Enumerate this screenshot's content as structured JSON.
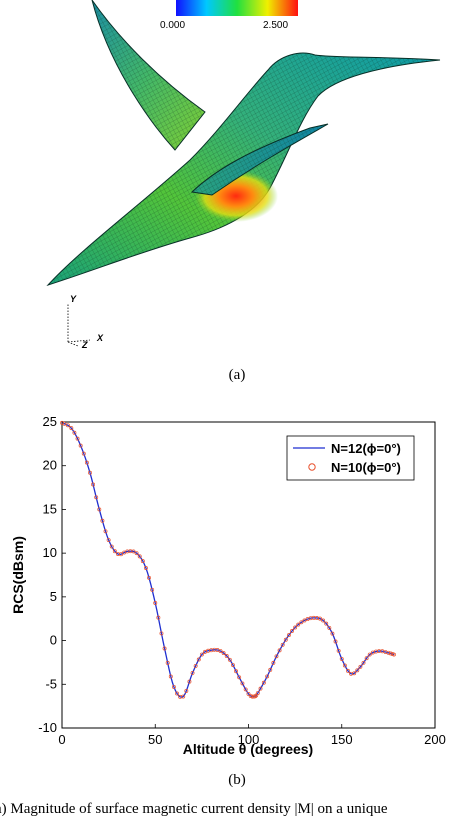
{
  "figure_a": {
    "colorbar": {
      "min_label": "0.000",
      "max_label": "2.500"
    },
    "axis_triad": {
      "y": "Y",
      "x": "X",
      "z": "Z"
    },
    "caption": "(a)"
  },
  "figure_b": {
    "caption": "(b)"
  },
  "main_caption": "(a) Magnitude of surface magnetic current density |M| on a unique",
  "chart_data": {
    "type": "line",
    "xlabel": "Altitude θ (degrees)",
    "ylabel": "RCS(dBsm)",
    "xlim": [
      0,
      200
    ],
    "ylim": [
      -10,
      25
    ],
    "xticks": [
      "0",
      "50",
      "100",
      "150",
      "200"
    ],
    "yticks": [
      "-10",
      "-5",
      "0",
      "5",
      "10",
      "15",
      "20",
      "25"
    ],
    "legend_position": "top-right",
    "grid": false,
    "x": [
      0,
      5,
      10,
      15,
      20,
      25,
      30,
      35,
      40,
      45,
      50,
      55,
      60,
      65,
      70,
      75,
      80,
      85,
      90,
      95,
      100,
      103,
      105,
      110,
      115,
      120,
      125,
      130,
      135,
      140,
      145,
      150,
      155,
      160,
      165,
      170,
      175,
      178
    ],
    "series": [
      {
        "name": "N=12(ϕ=0°)",
        "style": "line",
        "color": "#1f2fd0",
        "values": [
          24.9,
          24.3,
          22.3,
          19.2,
          15.0,
          11.5,
          9.9,
          10.2,
          10.0,
          8.3,
          4.3,
          -0.9,
          -5.3,
          -6.4,
          -3.7,
          -1.6,
          -1.1,
          -1.2,
          -2.2,
          -4.2,
          -6.1,
          -6.4,
          -6.0,
          -4.1,
          -1.8,
          0.1,
          1.5,
          2.3,
          2.6,
          2.3,
          0.8,
          -2.1,
          -3.8,
          -3.0,
          -1.6,
          -1.2,
          -1.4,
          -1.6
        ]
      },
      {
        "name": "N=10(ϕ=0°)",
        "style": "marker",
        "color": "#e8502c",
        "values": [
          24.9,
          24.3,
          22.3,
          19.2,
          15.0,
          11.5,
          9.9,
          10.2,
          10.0,
          8.3,
          4.3,
          -0.9,
          -5.3,
          -6.4,
          -3.7,
          -1.6,
          -1.1,
          -1.2,
          -2.2,
          -4.2,
          -6.1,
          -6.4,
          -6.0,
          -4.1,
          -1.8,
          0.1,
          1.5,
          2.3,
          2.6,
          2.3,
          0.8,
          -2.1,
          -3.8,
          -3.0,
          -1.6,
          -1.2,
          -1.4,
          -1.6
        ]
      }
    ]
  }
}
